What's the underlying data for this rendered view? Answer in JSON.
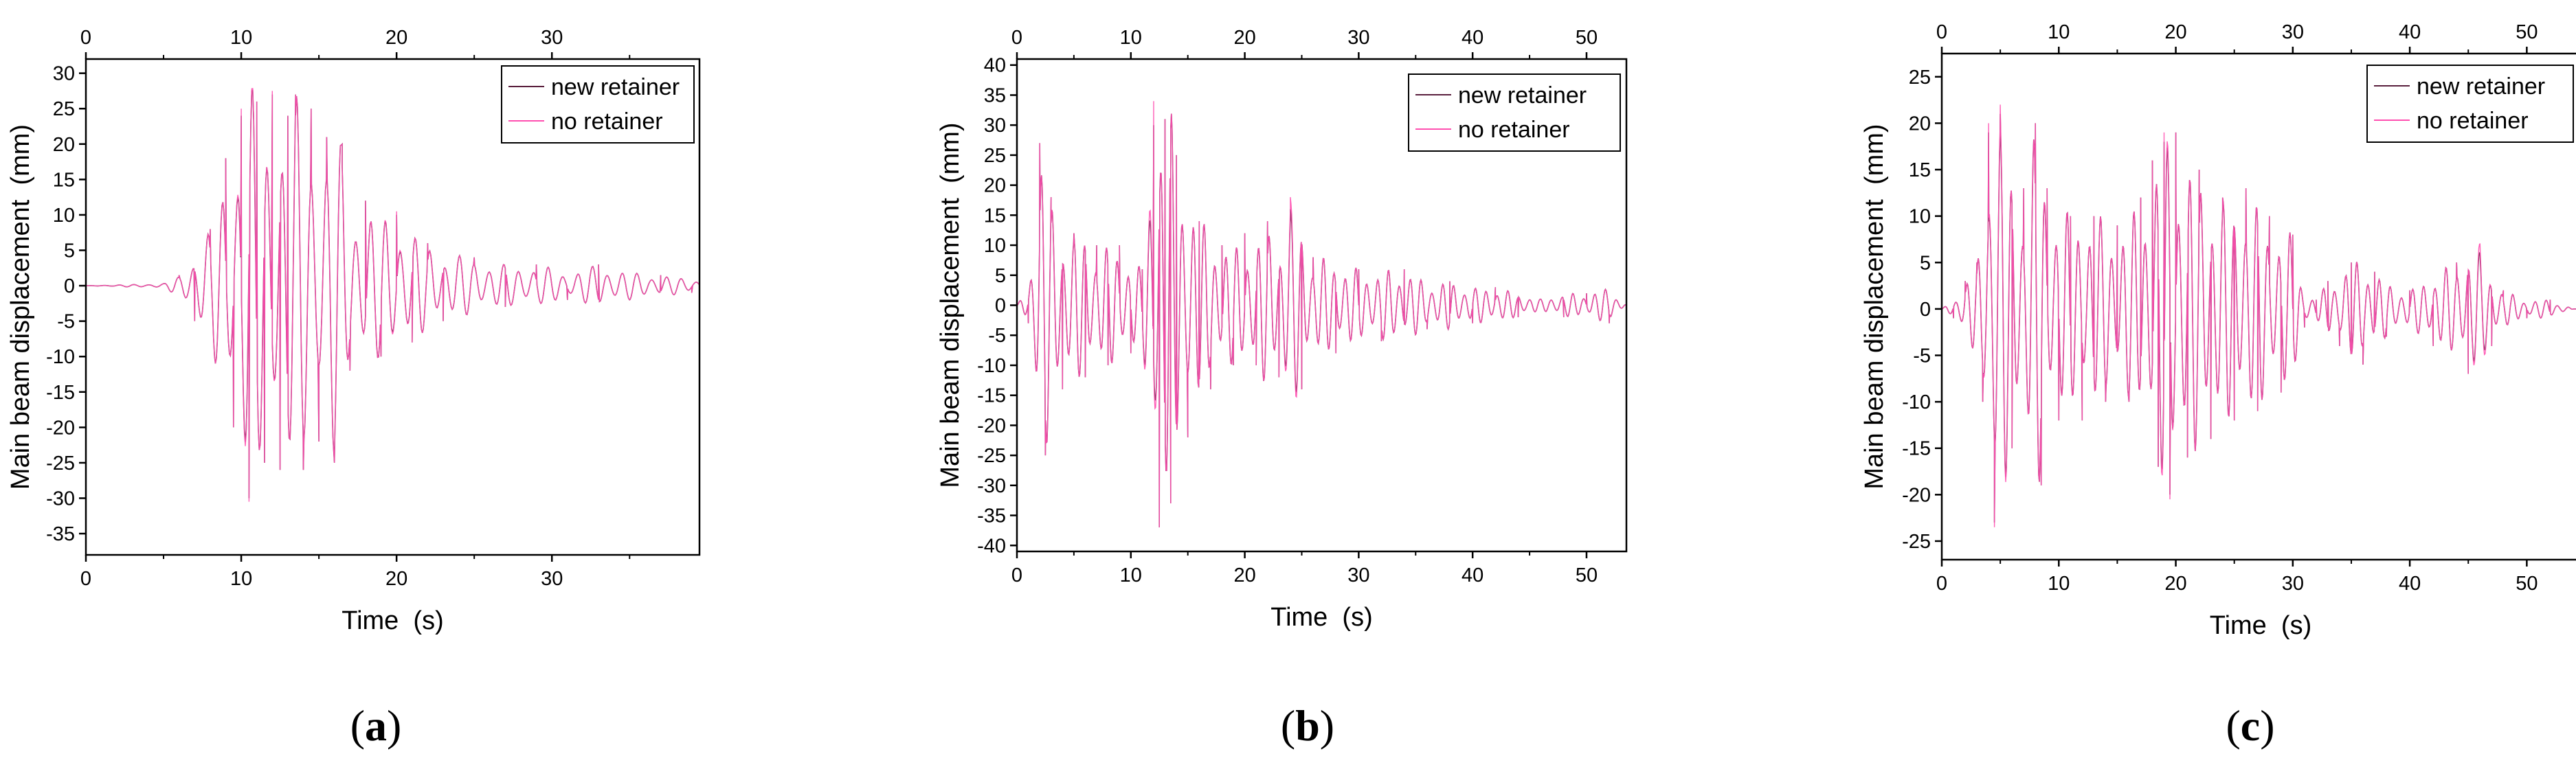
{
  "colors": {
    "new_retainer": "#5a1f3d",
    "no_retainer": "#ff4fb0",
    "axis": "#000000"
  },
  "chart_data": [
    {
      "type": "line",
      "panel_label": "a",
      "xlabel": "Time  (s)",
      "ylabel": "Main beam displacement  (mm)",
      "xlim": [
        0,
        39.5
      ],
      "ylim": [
        -38,
        32
      ],
      "xticks": [
        0,
        10,
        20,
        30
      ],
      "yticks": [
        -35,
        -30,
        -25,
        -20,
        -15,
        -10,
        -5,
        0,
        5,
        10,
        15,
        20,
        25,
        30
      ],
      "legend": [
        "new retainer",
        "no retainer"
      ],
      "legend_position": "top-right",
      "series": [
        {
          "name": "new retainer",
          "peaks": [
            [
              0,
              0
            ],
            [
              5,
              0.3
            ],
            [
              6,
              1.5
            ],
            [
              7,
              -5
            ],
            [
              8,
              8
            ],
            [
              9,
              18
            ],
            [
              9.5,
              -20
            ],
            [
              10,
              24
            ],
            [
              10.5,
              -30
            ],
            [
              11,
              26
            ],
            [
              11.5,
              -25
            ],
            [
              12,
              27
            ],
            [
              12.5,
              -26
            ],
            [
              13,
              24
            ],
            [
              13.5,
              27
            ],
            [
              14,
              -26
            ],
            [
              14.5,
              25
            ],
            [
              15,
              -22
            ],
            [
              15.5,
              21
            ],
            [
              16,
              -25
            ],
            [
              16.5,
              20
            ],
            [
              17,
              -12
            ],
            [
              18,
              12
            ],
            [
              19,
              -10
            ],
            [
              20,
              10
            ],
            [
              21,
              -8
            ],
            [
              22,
              6
            ],
            [
              23,
              -5
            ],
            [
              25,
              4
            ],
            [
              27,
              -3
            ],
            [
              29,
              3
            ],
            [
              31,
              -2
            ],
            [
              33,
              3
            ],
            [
              35,
              -2
            ],
            [
              37,
              1.5
            ],
            [
              39,
              -1
            ]
          ]
        },
        {
          "name": "no retainer",
          "peaks": [
            [
              0,
              0
            ],
            [
              5,
              0.3
            ],
            [
              6,
              1.5
            ],
            [
              7,
              -5
            ],
            [
              8,
              8
            ],
            [
              9,
              18
            ],
            [
              9.5,
              -20
            ],
            [
              10,
              25
            ],
            [
              10.5,
              -30.5
            ],
            [
              11,
              26
            ],
            [
              11.5,
              -25
            ],
            [
              12,
              27.5
            ],
            [
              12.5,
              -26
            ],
            [
              13,
              24
            ],
            [
              13.5,
              27
            ],
            [
              14,
              -26
            ],
            [
              14.5,
              25
            ],
            [
              15,
              -22
            ],
            [
              15.5,
              21
            ],
            [
              16,
              -25
            ],
            [
              16.5,
              20
            ],
            [
              17,
              -12
            ],
            [
              18,
              12
            ],
            [
              19,
              -10
            ],
            [
              20,
              10.5
            ],
            [
              21,
              -8
            ],
            [
              22,
              6
            ],
            [
              23,
              -5
            ],
            [
              25,
              4
            ],
            [
              27,
              -3
            ],
            [
              29,
              3
            ],
            [
              31,
              -2
            ],
            [
              33,
              3
            ],
            [
              35,
              -2
            ],
            [
              37,
              1.5
            ],
            [
              39,
              -1
            ]
          ]
        }
      ]
    },
    {
      "type": "line",
      "panel_label": "b",
      "xlabel": "Time  (s)",
      "ylabel": "Main beam displacement  (mm)",
      "xlim": [
        0,
        53.5
      ],
      "ylim": [
        -41,
        41
      ],
      "xticks": [
        0,
        10,
        20,
        30,
        40,
        50
      ],
      "yticks": [
        -40,
        -35,
        -30,
        -25,
        -20,
        -15,
        -10,
        -5,
        0,
        5,
        10,
        15,
        20,
        25,
        30,
        35,
        40
      ],
      "legend": [
        "new retainer",
        "no retainer"
      ],
      "legend_position": "top-right",
      "series": [
        {
          "name": "new retainer",
          "peaks": [
            [
              0,
              0
            ],
            [
              1,
              -3
            ],
            [
              2,
              27
            ],
            [
              2.5,
              -25
            ],
            [
              3,
              18
            ],
            [
              4,
              -14
            ],
            [
              5,
              12
            ],
            [
              6,
              -12
            ],
            [
              7,
              10
            ],
            [
              8,
              -10
            ],
            [
              9,
              10
            ],
            [
              10,
              -8
            ],
            [
              11,
              6
            ],
            [
              12,
              30
            ],
            [
              12.5,
              -37
            ],
            [
              13,
              31
            ],
            [
              13.5,
              -33
            ],
            [
              14,
              25
            ],
            [
              15,
              -22
            ],
            [
              16,
              14
            ],
            [
              17,
              -14
            ],
            [
              18,
              10
            ],
            [
              19,
              -10
            ],
            [
              20,
              12
            ],
            [
              21,
              -10
            ],
            [
              22,
              14
            ],
            [
              23,
              -12
            ],
            [
              24,
              16
            ],
            [
              25,
              -14
            ],
            [
              26,
              8
            ],
            [
              28,
              -8
            ],
            [
              30,
              6
            ],
            [
              32,
              -6
            ],
            [
              34,
              6
            ],
            [
              36,
              -4
            ],
            [
              38,
              4
            ],
            [
              40,
              -3
            ],
            [
              42,
              3
            ],
            [
              44,
              -2
            ],
            [
              46,
              1
            ],
            [
              48,
              -2
            ],
            [
              50,
              2
            ],
            [
              52,
              -3
            ],
            [
              53.5,
              0
            ]
          ]
        },
        {
          "name": "no retainer",
          "peaks": [
            [
              0,
              0
            ],
            [
              1,
              -3
            ],
            [
              2,
              27
            ],
            [
              2.5,
              -25
            ],
            [
              3,
              18
            ],
            [
              4,
              -14
            ],
            [
              5,
              12
            ],
            [
              6,
              -12
            ],
            [
              7,
              10
            ],
            [
              8,
              -10
            ],
            [
              9,
              10
            ],
            [
              10,
              -8
            ],
            [
              11,
              6
            ],
            [
              12,
              34
            ],
            [
              12.5,
              -37
            ],
            [
              13,
              31
            ],
            [
              13.5,
              -33
            ],
            [
              14,
              25
            ],
            [
              15,
              -22
            ],
            [
              16,
              14
            ],
            [
              17,
              -14
            ],
            [
              18,
              10
            ],
            [
              19,
              -10
            ],
            [
              20,
              12
            ],
            [
              21,
              -10
            ],
            [
              22,
              14
            ],
            [
              23,
              -12
            ],
            [
              24,
              18
            ],
            [
              25,
              -14
            ],
            [
              26,
              8
            ],
            [
              28,
              -8
            ],
            [
              30,
              6
            ],
            [
              32,
              -6
            ],
            [
              34,
              6
            ],
            [
              36,
              -4
            ],
            [
              38,
              4
            ],
            [
              40,
              -3
            ],
            [
              42,
              3
            ],
            [
              44,
              -2
            ],
            [
              46,
              1
            ],
            [
              48,
              -2
            ],
            [
              50,
              2
            ],
            [
              52,
              -3
            ],
            [
              53.5,
              0
            ]
          ]
        }
      ]
    },
    {
      "type": "line",
      "panel_label": "c",
      "xlabel": "Time  (s)",
      "ylabel": "Main beam displacement  (mm)",
      "xlim": [
        0,
        54.5
      ],
      "ylim": [
        -27,
        27.5
      ],
      "xticks": [
        0,
        10,
        20,
        30,
        40,
        50
      ],
      "yticks": [
        -25,
        -20,
        -15,
        -10,
        -5,
        0,
        5,
        10,
        15,
        20,
        25
      ],
      "legend": [
        "new retainer",
        "no retainer"
      ],
      "legend_position": "top-right",
      "series": [
        {
          "name": "new retainer",
          "peaks": [
            [
              0,
              0
            ],
            [
              1,
              -1
            ],
            [
              2,
              3
            ],
            [
              3,
              5
            ],
            [
              3.5,
              -10
            ],
            [
              4,
              19
            ],
            [
              4.5,
              -23
            ],
            [
              5,
              21
            ],
            [
              6,
              -15
            ],
            [
              7,
              13
            ],
            [
              8,
              20
            ],
            [
              8.5,
              -19
            ],
            [
              9,
              13
            ],
            [
              10,
              -12
            ],
            [
              11,
              10
            ],
            [
              12,
              -12
            ],
            [
              13,
              10
            ],
            [
              14,
              -10
            ],
            [
              15,
              9
            ],
            [
              16,
              -10
            ],
            [
              17,
              12
            ],
            [
              18,
              16
            ],
            [
              18.5,
              -17
            ],
            [
              19,
              18
            ],
            [
              19.5,
              -20
            ],
            [
              20,
              19
            ],
            [
              21,
              -16
            ],
            [
              22,
              15
            ],
            [
              23,
              -14
            ],
            [
              24,
              12
            ],
            [
              25,
              -12
            ],
            [
              26,
              13
            ],
            [
              27,
              -11
            ],
            [
              28,
              10
            ],
            [
              29,
              -9
            ],
            [
              30,
              8
            ],
            [
              31,
              -2
            ],
            [
              32,
              1
            ],
            [
              33,
              3
            ],
            [
              34,
              -4
            ],
            [
              35,
              5
            ],
            [
              36,
              -6
            ],
            [
              37,
              4
            ],
            [
              38,
              -3
            ],
            [
              40,
              2
            ],
            [
              42,
              -4
            ],
            [
              44,
              5
            ],
            [
              45,
              -7
            ],
            [
              46,
              6
            ],
            [
              47,
              -4
            ],
            [
              48,
              2
            ],
            [
              50,
              -1
            ],
            [
              52,
              1
            ],
            [
              54,
              0
            ]
          ]
        },
        {
          "name": "no retainer",
          "peaks": [
            [
              0,
              0
            ],
            [
              1,
              -1
            ],
            [
              2,
              3
            ],
            [
              3,
              5
            ],
            [
              3.5,
              -10
            ],
            [
              4,
              20
            ],
            [
              4.5,
              -23.5
            ],
            [
              5,
              22
            ],
            [
              6,
              -15
            ],
            [
              7,
              13
            ],
            [
              8,
              20
            ],
            [
              8.5,
              -19
            ],
            [
              9,
              13
            ],
            [
              10,
              -12
            ],
            [
              11,
              10
            ],
            [
              12,
              -12
            ],
            [
              13,
              10
            ],
            [
              14,
              -10
            ],
            [
              15,
              9
            ],
            [
              16,
              -10
            ],
            [
              17,
              12
            ],
            [
              18,
              16
            ],
            [
              18.5,
              -17
            ],
            [
              19,
              19
            ],
            [
              19.5,
              -20.5
            ],
            [
              20,
              19
            ],
            [
              21,
              -16
            ],
            [
              22,
              15
            ],
            [
              23,
              -14
            ],
            [
              24,
              12
            ],
            [
              25,
              -12
            ],
            [
              26,
              13
            ],
            [
              27,
              -11
            ],
            [
              28,
              10
            ],
            [
              29,
              -9
            ],
            [
              30,
              8
            ],
            [
              31,
              -2
            ],
            [
              32,
              1
            ],
            [
              33,
              3
            ],
            [
              34,
              -4
            ],
            [
              35,
              5
            ],
            [
              36,
              -6
            ],
            [
              37,
              4
            ],
            [
              38,
              -3
            ],
            [
              40,
              2
            ],
            [
              42,
              -4
            ],
            [
              44,
              5
            ],
            [
              45,
              -7
            ],
            [
              46,
              7
            ],
            [
              47,
              -4
            ],
            [
              48,
              2
            ],
            [
              50,
              -1
            ],
            [
              52,
              1
            ],
            [
              54,
              0
            ]
          ]
        }
      ]
    }
  ]
}
